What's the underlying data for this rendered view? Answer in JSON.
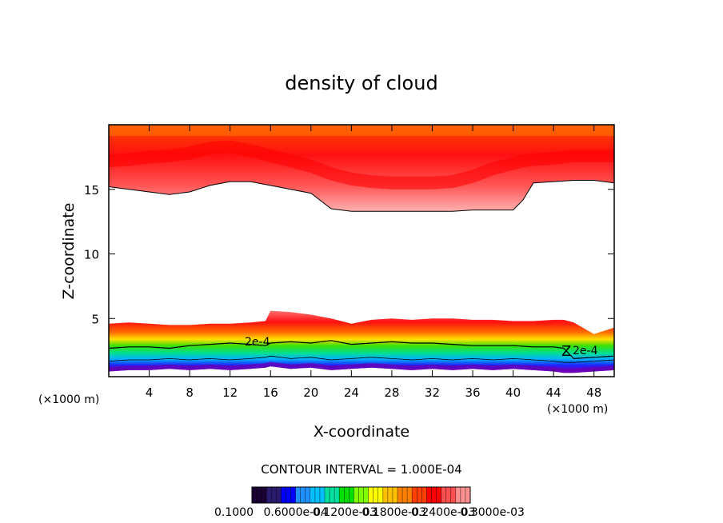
{
  "chart_data": {
    "type": "heatmap",
    "title": "density of cloud",
    "xlabel": "X-coordinate",
    "ylabel": "Z-coordinate",
    "x_unit": "(×1000 m)",
    "y_unit": "(×1000 m)",
    "xlim": [
      0,
      50
    ],
    "ylim": [
      0.5,
      20
    ],
    "x_ticks": [
      4,
      8,
      12,
      16,
      20,
      24,
      28,
      32,
      36,
      40,
      44,
      48
    ],
    "y_ticks": [
      5,
      10,
      15
    ],
    "contour_interval_label": "CONTOUR INTERVAL = 1.000E-04",
    "contour_label": "2e-4",
    "colorbar": {
      "labels": [
        "0.1000",
        "0.6000e-04",
        "0.1200e-03",
        "0.1800e-03",
        "0.2400e-03",
        "0.3000e-03"
      ],
      "colors": [
        "#1a0033",
        "#2b1b6e",
        "#0000ff",
        "#1e90ff",
        "#00c0ff",
        "#00e0a0",
        "#00e000",
        "#80ff00",
        "#ffff00",
        "#ffc000",
        "#ff8000",
        "#ff4000",
        "#ff0000",
        "#ff5050",
        "#ff9090"
      ]
    },
    "upper_layer": {
      "x": [
        0,
        2,
        4,
        6,
        8,
        10,
        12,
        14,
        16,
        18,
        20,
        22,
        24,
        26,
        28,
        30,
        32,
        34,
        36,
        38,
        40,
        41,
        42,
        44,
        46,
        48,
        50
      ],
      "cloud_base": [
        15.2,
        15.0,
        14.8,
        14.6,
        14.8,
        15.3,
        15.6,
        15.6,
        15.3,
        15.0,
        14.7,
        13.5,
        13.3,
        13.3,
        13.3,
        13.3,
        13.3,
        13.3,
        13.4,
        13.4,
        13.4,
        14.2,
        15.5,
        15.6,
        15.7,
        15.7,
        15.5
      ],
      "peak_height": [
        17.2,
        17.3,
        17.5,
        17.6,
        17.8,
        18.2,
        18.3,
        18.0,
        17.6,
        17.2,
        16.8,
        16.2,
        15.8,
        15.6,
        15.5,
        15.5,
        15.5,
        15.6,
        16.0,
        16.6,
        17.0,
        17.2,
        17.3,
        17.4,
        17.6,
        17.6,
        17.6
      ]
    },
    "lower_layer": {
      "x": [
        0,
        2,
        4,
        6,
        8,
        10,
        12,
        14,
        15.5,
        16,
        18,
        20,
        22,
        24,
        26,
        28,
        30,
        32,
        34,
        36,
        38,
        40,
        42,
        44,
        45,
        46,
        48,
        50
      ],
      "cloud_top": [
        4.6,
        4.7,
        4.6,
        4.5,
        4.5,
        4.6,
        4.6,
        4.7,
        4.8,
        5.6,
        5.5,
        5.3,
        5.0,
        4.6,
        4.9,
        5.0,
        4.9,
        5.0,
        5.0,
        4.9,
        4.9,
        4.8,
        4.8,
        4.9,
        4.9,
        4.7,
        3.8,
        4.3
      ],
      "contour_2e4": [
        2.7,
        2.8,
        2.8,
        2.7,
        2.9,
        3.0,
        3.1,
        3.0,
        2.9,
        3.1,
        3.2,
        3.1,
        3.3,
        3.0,
        3.1,
        3.2,
        3.1,
        3.1,
        3.0,
        2.9,
        2.9,
        2.9,
        2.8,
        2.8,
        2.7,
        1.9,
        2.0,
        2.1
      ],
      "cloud_base": [
        0.9,
        1.0,
        1.0,
        1.1,
        1.0,
        1.1,
        1.0,
        1.1,
        1.2,
        1.3,
        1.1,
        1.2,
        1.0,
        1.1,
        1.2,
        1.1,
        1.0,
        1.1,
        1.0,
        1.1,
        1.0,
        1.1,
        1.0,
        0.9,
        0.8,
        0.8,
        0.9,
        1.0
      ]
    }
  }
}
